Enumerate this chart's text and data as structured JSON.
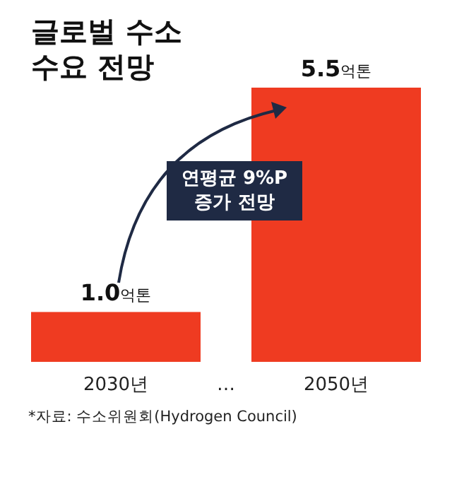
{
  "chart_data": {
    "type": "bar",
    "title": "글로벌 수소 수요 전망",
    "categories": [
      "2030년",
      "2050년"
    ],
    "values": [
      1.0,
      5.5
    ],
    "value_labels": [
      "1.0억톤",
      "5.5억톤"
    ],
    "color": "#ef3b21",
    "annotations": [
      "연평균 9%P 증가 전망",
      "*자료: 수소위원회(Hydrogen Council)",
      "…"
    ]
  }
}
